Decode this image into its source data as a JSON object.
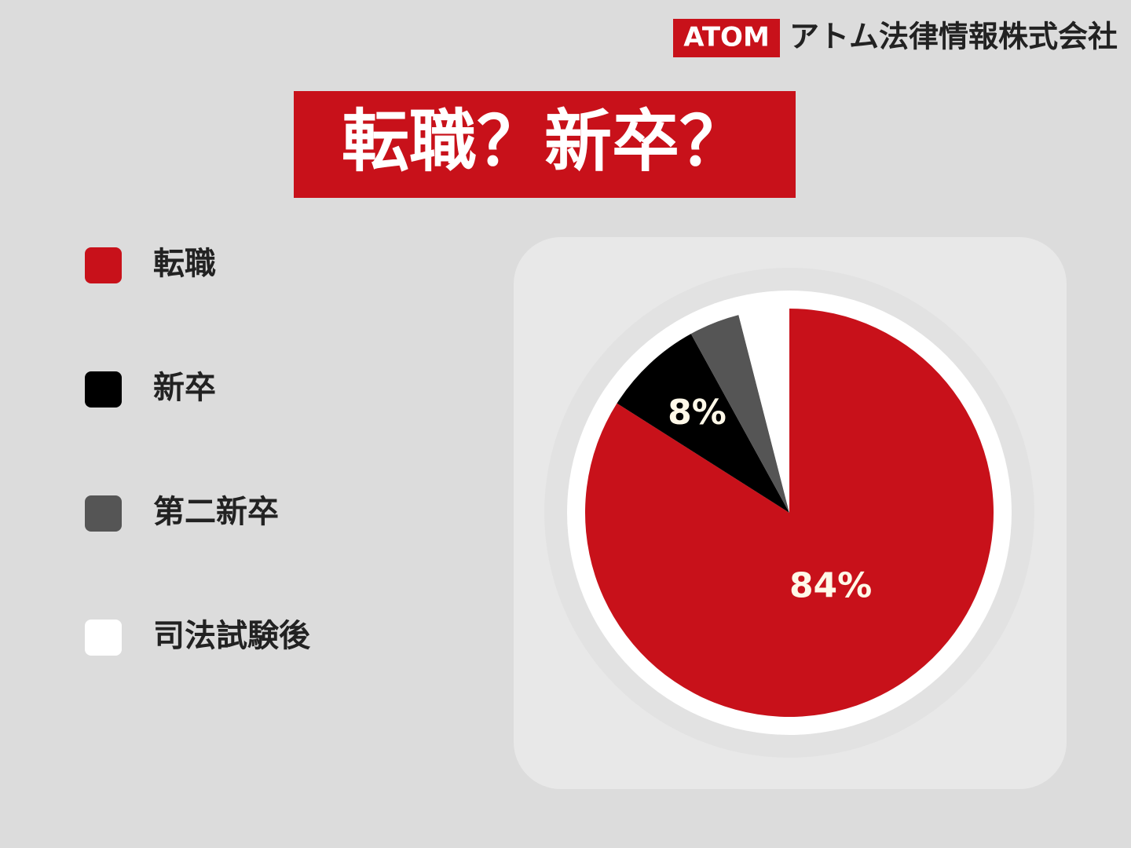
{
  "brand": {
    "logo": "ATOM",
    "name": "アトム法律情報株式会社"
  },
  "chart_data": {
    "type": "pie",
    "title": "転職？新卒？",
    "categories": [
      "転職",
      "新卒",
      "第二新卒",
      "司法試験後"
    ],
    "values": [
      84,
      8,
      4,
      4
    ],
    "value_labels": [
      "84%",
      "8%",
      null,
      null
    ],
    "colors": [
      "#c8111a",
      "#000000",
      "#555555",
      "#ffffff"
    ]
  }
}
